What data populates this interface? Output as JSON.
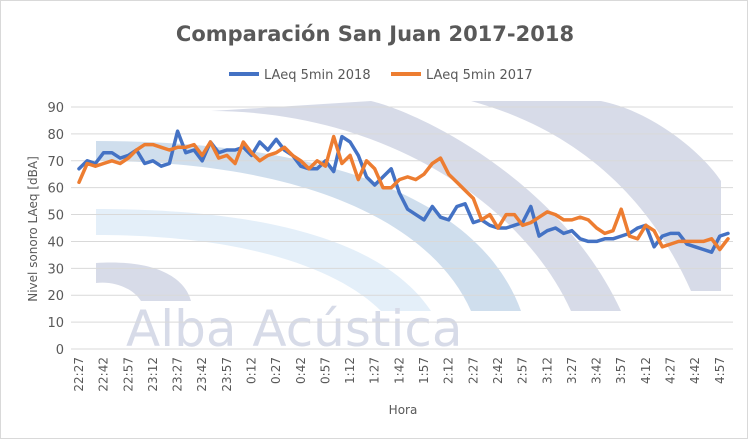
{
  "chart_data": {
    "type": "line",
    "title": "Comparación San Juan 2017-2018",
    "xlabel": "Hora",
    "ylabel": "Nivel sonoro LAeq [dBA]",
    "ylim": [
      0,
      90
    ],
    "yticks": [
      0,
      10,
      20,
      30,
      40,
      50,
      60,
      70,
      80,
      90
    ],
    "grid": "horizontal",
    "legend": "top",
    "watermark": "Alba Acústica",
    "x": [
      "22:27",
      "22:32",
      "22:37",
      "22:42",
      "22:47",
      "22:52",
      "22:57",
      "23:02",
      "23:07",
      "23:12",
      "23:17",
      "23:22",
      "23:27",
      "23:32",
      "23:37",
      "23:42",
      "23:47",
      "23:52",
      "23:57",
      "0:02",
      "0:07",
      "0:12",
      "0:17",
      "0:22",
      "0:27",
      "0:32",
      "0:37",
      "0:42",
      "0:47",
      "0:52",
      "0:57",
      "1:02",
      "1:07",
      "1:12",
      "1:17",
      "1:22",
      "1:27",
      "1:32",
      "1:37",
      "1:42",
      "1:47",
      "1:52",
      "1:57",
      "2:02",
      "2:07",
      "2:12",
      "2:17",
      "2:22",
      "2:27",
      "2:32",
      "2:37",
      "2:42",
      "2:47",
      "2:52",
      "2:57",
      "3:02",
      "3:07",
      "3:12",
      "3:17",
      "3:22",
      "3:27",
      "3:32",
      "3:37",
      "3:42",
      "3:47",
      "3:52",
      "3:57",
      "4:02",
      "4:07",
      "4:12",
      "4:17",
      "4:22",
      "4:27",
      "4:32",
      "4:37",
      "4:42",
      "4:47",
      "4:52",
      "4:57",
      "5:02"
    ],
    "xtick_labels": [
      "22:27",
      "22:42",
      "22:57",
      "23:12",
      "23:27",
      "23:42",
      "23:57",
      "0:12",
      "0:27",
      "0:42",
      "0:57",
      "1:12",
      "1:27",
      "1:42",
      "1:57",
      "2:12",
      "2:27",
      "2:42",
      "2:57",
      "3:12",
      "3:27",
      "3:42",
      "3:57",
      "4:12",
      "4:27",
      "4:42",
      "4:57"
    ],
    "series": [
      {
        "name": "LAeq 5min 2018",
        "color": "#4472C4",
        "values": [
          67,
          70,
          69,
          73,
          73,
          71,
          72,
          74,
          69,
          70,
          68,
          69,
          81,
          73,
          74,
          70,
          77,
          73,
          74,
          74,
          75,
          72,
          77,
          74,
          78,
          74,
          72,
          68,
          67,
          67,
          70,
          66,
          79,
          77,
          72,
          64,
          61,
          64,
          67,
          58,
          52,
          50,
          48,
          53,
          49,
          48,
          53,
          54,
          47,
          48,
          46,
          45,
          45,
          46,
          47,
          53,
          42,
          44,
          45,
          43,
          44,
          41,
          40,
          40,
          41,
          41,
          42,
          43,
          45,
          46,
          38,
          42,
          43,
          43,
          39,
          38,
          37,
          36,
          42,
          43
        ]
      },
      {
        "name": "LAeq 5min 2017",
        "color": "#ED7D31",
        "values": [
          62,
          69,
          68,
          69,
          70,
          69,
          71,
          74,
          76,
          76,
          75,
          74,
          75,
          75,
          76,
          72,
          77,
          71,
          72,
          69,
          77,
          73,
          70,
          72,
          73,
          75,
          72,
          70,
          67,
          70,
          68,
          79,
          69,
          72,
          63,
          70,
          67,
          60,
          60,
          63,
          64,
          63,
          65,
          69,
          71,
          65,
          62,
          59,
          56,
          48,
          50,
          45,
          50,
          50,
          46,
          47,
          49,
          51,
          50,
          48,
          48,
          49,
          48,
          45,
          43,
          44,
          52,
          42,
          41,
          46,
          44,
          38,
          39,
          40,
          40,
          40,
          40,
          41,
          37,
          41
        ]
      }
    ]
  }
}
